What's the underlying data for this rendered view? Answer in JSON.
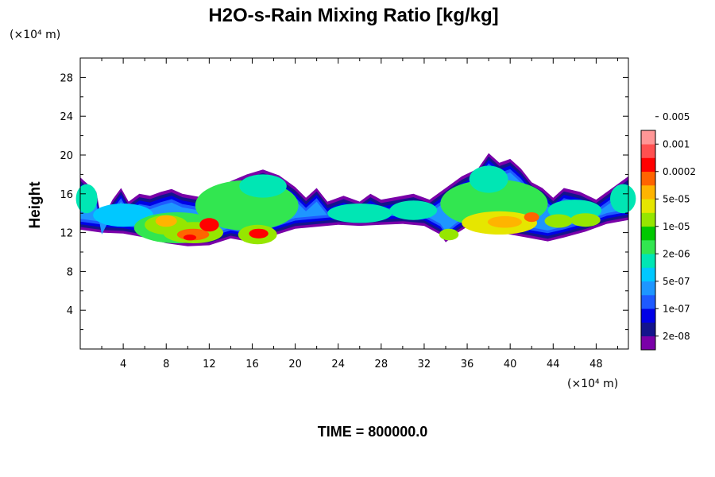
{
  "chart_data": {
    "type": "heatmap",
    "title": "H2O-s-Rain Mixing Ratio [kg/kg]",
    "ylabel": "Height",
    "x_unit_label": "(×10⁴ m)",
    "y_unit_label": "(×10⁴ m)",
    "footer": "TIME = 800000.0",
    "xlim": [
      0,
      51
    ],
    "ylim": [
      0,
      30
    ],
    "x_ticks": [
      4,
      8,
      12,
      16,
      20,
      24,
      28,
      32,
      36,
      40,
      44,
      48
    ],
    "x_tick_labels": [
      "4",
      "8",
      "12",
      "16",
      "20",
      "24",
      "28",
      "32",
      "36",
      "40",
      "44",
      "48"
    ],
    "y_ticks": [
      4,
      8,
      12,
      16,
      20,
      24,
      28
    ],
    "y_tick_labels": [
      "4",
      "8",
      "12",
      "16",
      "20",
      "24",
      "28"
    ],
    "colorbar": {
      "levels": [
        "2e-08",
        "1e-07",
        "5e-07",
        "2e-06",
        "1e-05",
        "5e-05",
        "0.0002",
        "0.001",
        "0.005"
      ],
      "colors": [
        "#7a00a8",
        "#14148c",
        "#0000e6",
        "#1e5aff",
        "#1e96ff",
        "#00c8ff",
        "#00e6b4",
        "#32e650",
        "#00c800",
        "#96e600",
        "#e6e600",
        "#ffb400",
        "#ff6400",
        "#ff0000",
        "#ff5050",
        "#ff9696"
      ]
    },
    "upper_envelope": [
      [
        0,
        17.7
      ],
      [
        1.5,
        16.2
      ],
      [
        2,
        13.2
      ],
      [
        3,
        15.4
      ],
      [
        3.8,
        16.6
      ],
      [
        4.5,
        15.2
      ],
      [
        5.5,
        16.0
      ],
      [
        6.5,
        15.8
      ],
      [
        7.5,
        16.2
      ],
      [
        8.5,
        16.5
      ],
      [
        9.5,
        16.0
      ],
      [
        11,
        15.7
      ],
      [
        12.5,
        16.2
      ],
      [
        14,
        17.3
      ],
      [
        15.5,
        18.0
      ],
      [
        17,
        18.5
      ],
      [
        18.5,
        17.9
      ],
      [
        20,
        16.7
      ],
      [
        21,
        15.6
      ],
      [
        22,
        16.6
      ],
      [
        23,
        15.2
      ],
      [
        24.5,
        15.8
      ],
      [
        26,
        15.2
      ],
      [
        27,
        16.0
      ],
      [
        28,
        15.4
      ],
      [
        29.5,
        15.7
      ],
      [
        31,
        16.0
      ],
      [
        32.5,
        15.4
      ],
      [
        34,
        16.6
      ],
      [
        35.5,
        17.8
      ],
      [
        37,
        18.6
      ],
      [
        38,
        20.2
      ],
      [
        39,
        19.2
      ],
      [
        40,
        19.6
      ],
      [
        41,
        18.6
      ],
      [
        42,
        17.2
      ],
      [
        43,
        16.6
      ],
      [
        44,
        15.6
      ],
      [
        45,
        16.6
      ],
      [
        46.5,
        16.2
      ],
      [
        48,
        15.4
      ],
      [
        49.5,
        16.6
      ],
      [
        51,
        17.8
      ]
    ],
    "lower_envelope": [
      [
        0,
        12.3
      ],
      [
        2,
        12.0
      ],
      [
        4,
        11.9
      ],
      [
        6,
        11.5
      ],
      [
        8,
        10.9
      ],
      [
        10,
        10.6
      ],
      [
        12,
        10.7
      ],
      [
        14,
        11.4
      ],
      [
        16,
        11.0
      ],
      [
        18,
        11.7
      ],
      [
        20,
        12.4
      ],
      [
        22,
        12.6
      ],
      [
        24,
        12.8
      ],
      [
        26,
        12.7
      ],
      [
        28,
        12.8
      ],
      [
        30,
        12.9
      ],
      [
        32,
        12.7
      ],
      [
        33.5,
        11.8
      ],
      [
        34,
        11.0
      ],
      [
        35,
        11.9
      ],
      [
        36,
        12.6
      ],
      [
        38,
        12.2
      ],
      [
        40,
        11.8
      ],
      [
        42,
        11.4
      ],
      [
        43.5,
        11.1
      ],
      [
        45,
        11.5
      ],
      [
        47,
        12.1
      ],
      [
        49,
        12.9
      ],
      [
        51,
        13.3
      ]
    ],
    "regions": [
      {
        "cx": 4.0,
        "cy": 13.8,
        "rx": 2.8,
        "ry": 1.2,
        "level": 5
      },
      {
        "cx": 9.0,
        "cy": 12.5,
        "rx": 4.0,
        "ry": 1.6,
        "level": 7
      },
      {
        "cx": 15.5,
        "cy": 14.8,
        "rx": 4.8,
        "ry": 2.6,
        "level": 7
      },
      {
        "cx": 17.0,
        "cy": 16.8,
        "rx": 2.2,
        "ry": 1.2,
        "level": 6
      },
      {
        "cx": 26.0,
        "cy": 14.0,
        "rx": 3.0,
        "ry": 1.0,
        "level": 6
      },
      {
        "cx": 31.0,
        "cy": 14.3,
        "rx": 2.2,
        "ry": 1.0,
        "level": 6
      },
      {
        "cx": 38.5,
        "cy": 15.0,
        "rx": 5.0,
        "ry": 2.5,
        "level": 7
      },
      {
        "cx": 38.0,
        "cy": 17.5,
        "rx": 1.8,
        "ry": 1.4,
        "level": 6
      },
      {
        "cx": 46.0,
        "cy": 14.3,
        "rx": 2.5,
        "ry": 1.1,
        "level": 6
      },
      {
        "cx": 50.5,
        "cy": 15.5,
        "rx": 1.2,
        "ry": 1.5,
        "level": 6
      },
      {
        "cx": 0.6,
        "cy": 15.5,
        "rx": 1.0,
        "ry": 1.5,
        "level": 6
      },
      {
        "cx": 8.0,
        "cy": 12.8,
        "rx": 2.0,
        "ry": 1.0,
        "level": 9
      },
      {
        "cx": 10.5,
        "cy": 12.0,
        "rx": 2.8,
        "ry": 1.1,
        "level": 9
      },
      {
        "cx": 16.5,
        "cy": 11.8,
        "rx": 1.8,
        "ry": 1.0,
        "level": 9
      },
      {
        "cx": 34.3,
        "cy": 11.8,
        "rx": 0.9,
        "ry": 0.6,
        "level": 9
      },
      {
        "cx": 39.0,
        "cy": 13.0,
        "rx": 3.5,
        "ry": 1.2,
        "level": 10
      },
      {
        "cx": 44.5,
        "cy": 13.2,
        "rx": 1.3,
        "ry": 0.7,
        "level": 9
      },
      {
        "cx": 47.0,
        "cy": 13.3,
        "rx": 1.4,
        "ry": 0.7,
        "level": 9
      },
      {
        "cx": 8.0,
        "cy": 13.2,
        "rx": 1.0,
        "ry": 0.6,
        "level": 11
      },
      {
        "cx": 10.5,
        "cy": 11.8,
        "rx": 1.5,
        "ry": 0.6,
        "level": 12
      },
      {
        "cx": 12.0,
        "cy": 12.8,
        "rx": 0.9,
        "ry": 0.7,
        "level": 13
      },
      {
        "cx": 16.6,
        "cy": 11.9,
        "rx": 0.9,
        "ry": 0.5,
        "level": 13
      },
      {
        "cx": 39.5,
        "cy": 13.1,
        "rx": 1.6,
        "ry": 0.6,
        "level": 11
      },
      {
        "cx": 42.0,
        "cy": 13.6,
        "rx": 0.7,
        "ry": 0.5,
        "level": 12
      },
      {
        "cx": 10.2,
        "cy": 11.5,
        "rx": 0.6,
        "ry": 0.3,
        "level": 13
      }
    ]
  }
}
